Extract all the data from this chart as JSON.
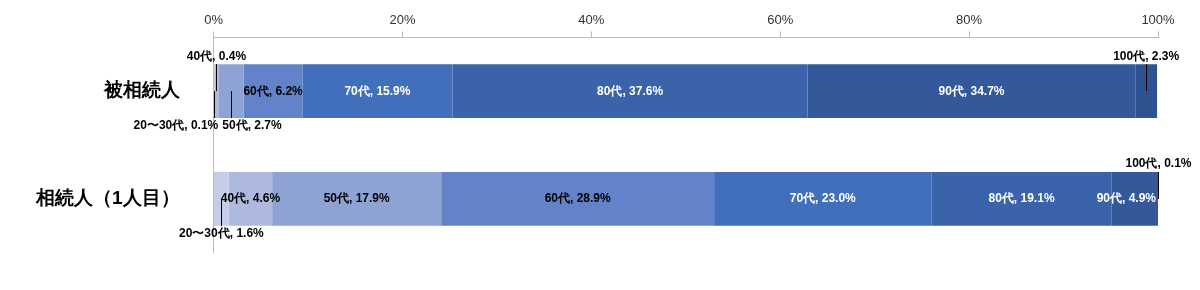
{
  "chart_data": {
    "type": "bar",
    "orientation": "horizontal",
    "stacked": true,
    "grid": false,
    "legend": false,
    "categories": [
      "被相続人",
      "相続人（1人目）"
    ],
    "xlim": [
      0,
      100
    ],
    "xticks": [
      {
        "value": 0,
        "label": "0%"
      },
      {
        "value": 20,
        "label": "20%"
      },
      {
        "value": 40,
        "label": "40%"
      },
      {
        "value": 60,
        "label": "60%"
      },
      {
        "value": 80,
        "label": "80%"
      },
      {
        "value": 100,
        "label": "100%"
      }
    ],
    "series": [
      {
        "color": "#c5cce6",
        "values": [
          0.1,
          1.6
        ],
        "value_labels": [
          "20〜30代, 0.1%",
          "20〜30代, 1.6%"
        ]
      },
      {
        "color": "#aeb9df",
        "values": [
          0.4,
          4.6
        ],
        "value_labels": [
          "40代, 0.4%",
          "40代, 4.6%"
        ]
      },
      {
        "color": "#8fa2d4",
        "values": [
          2.7,
          17.9
        ],
        "value_labels": [
          "50代, 2.7%",
          "50代, 17.9%"
        ]
      },
      {
        "color": "#6282c9",
        "values": [
          6.2,
          28.9
        ],
        "value_labels": [
          "60代, 6.2%",
          "60代, 28.9%"
        ]
      },
      {
        "color": "#416fbc",
        "values": [
          15.9,
          23.0
        ],
        "value_labels": [
          "70代, 15.9%",
          "70代, 23.0%"
        ]
      },
      {
        "color": "#3a63aa",
        "values": [
          37.6,
          19.1
        ],
        "value_labels": [
          "80代, 37.6%",
          "80代, 19.1%"
        ]
      },
      {
        "color": "#33599b",
        "values": [
          34.7,
          4.9
        ],
        "value_labels": [
          "90代, 34.7%",
          "90代, 4.9%"
        ]
      },
      {
        "color": "#2e5190",
        "values": [
          2.3,
          0.1
        ],
        "value_labels": [
          "100代, 2.3%",
          "100代, 0.1%"
        ]
      }
    ]
  }
}
